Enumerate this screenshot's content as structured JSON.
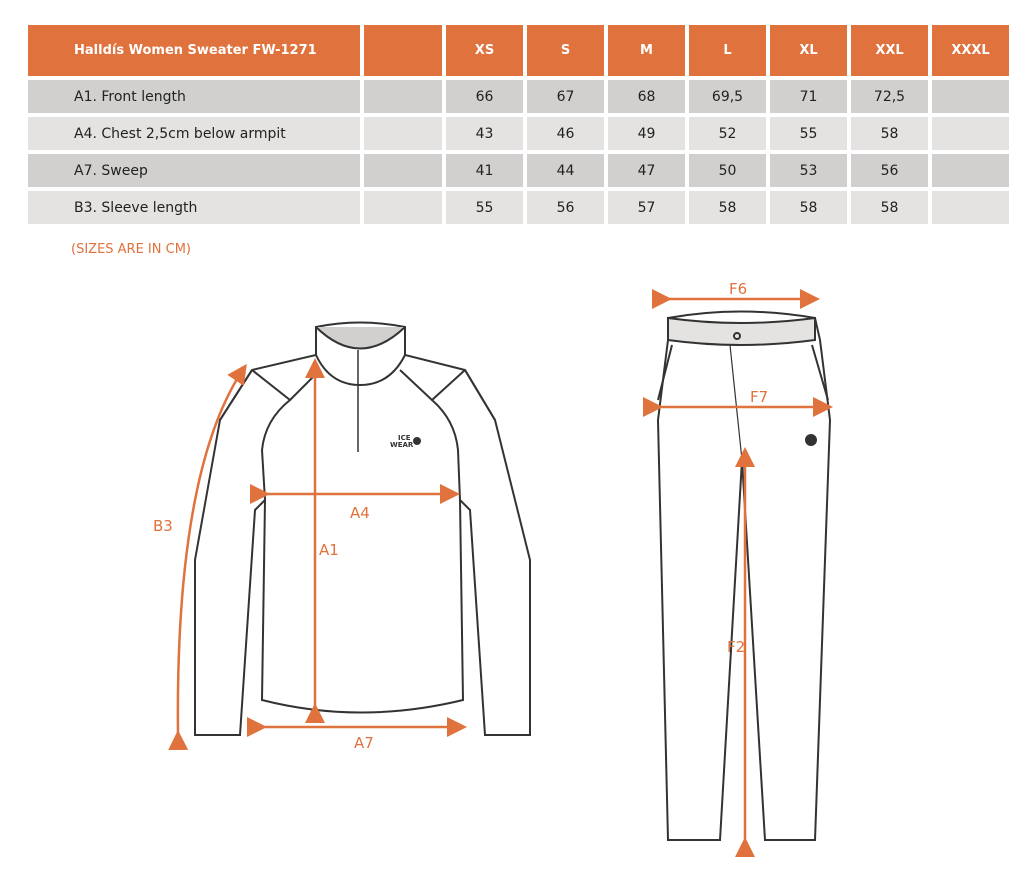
{
  "table": {
    "title": "Halldís Women Sweater FW-1271",
    "sizes": [
      "XS",
      "S",
      "M",
      "L",
      "XL",
      "XXL",
      "XXXL"
    ],
    "rows": [
      {
        "label": "A1. Front length",
        "values": [
          "66",
          "67",
          "68",
          "69,5",
          "71",
          "72,5",
          ""
        ]
      },
      {
        "label": "A4. Chest 2,5cm below armpit",
        "values": [
          "43",
          "46",
          "49",
          "52",
          "55",
          "58",
          ""
        ]
      },
      {
        "label": "A7. Sweep",
        "values": [
          "41",
          "44",
          "47",
          "50",
          "53",
          "56",
          ""
        ]
      },
      {
        "label": "B3. Sleeve length",
        "values": [
          "55",
          "56",
          "57",
          "58",
          "58",
          "58",
          ""
        ]
      }
    ]
  },
  "note": "(SIZES ARE IN CM)",
  "diagram": {
    "sweater_labels": {
      "b3": "B3",
      "a4": "A4",
      "a1": "A1",
      "a7": "A7"
    },
    "pants_labels": {
      "f6": "F6",
      "f7": "F7",
      "f2": "F2"
    },
    "logo": "ICE WEAR",
    "accent": "#e0723d"
  }
}
